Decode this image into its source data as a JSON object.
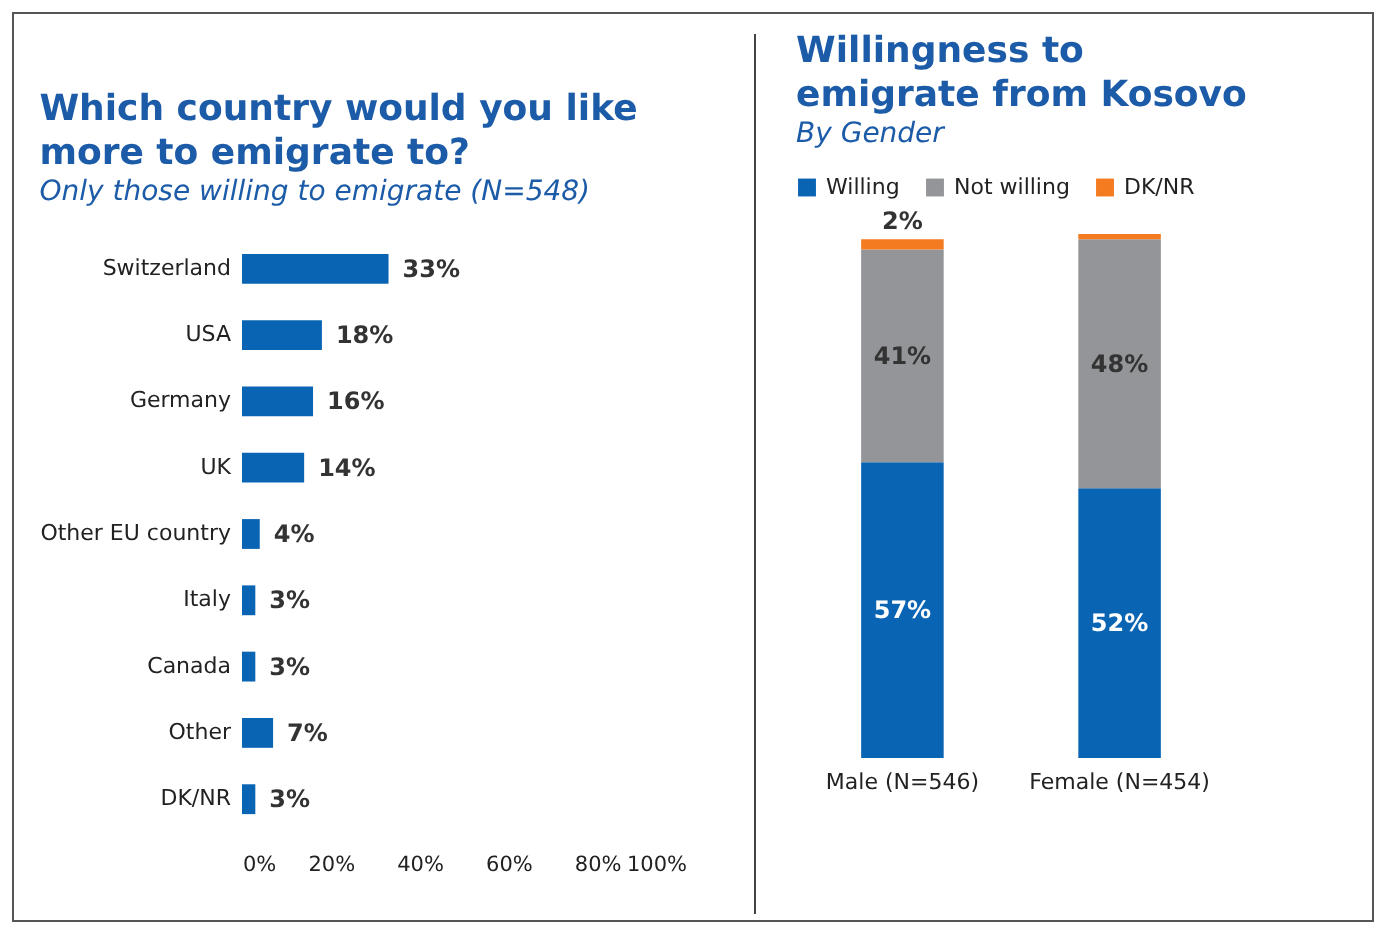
{
  "chart_data": [
    {
      "type": "bar",
      "orientation": "horizontal",
      "title": "Which country would you like more to emigrate to?",
      "subtitle": "Only those willing to emigrate (N=548)",
      "categories": [
        "Switzerland",
        "USA",
        "Germany",
        "UK",
        "Other EU country",
        "Italy",
        "Canada",
        "Other",
        "DK/NR"
      ],
      "values": [
        33,
        18,
        16,
        14,
        4,
        3,
        3,
        7,
        3
      ],
      "color": "#0a64b4",
      "value_labels": [
        "33%",
        "18%",
        "16%",
        "14%",
        "4%",
        "3%",
        "3%",
        "7%",
        "3%"
      ],
      "xlim": [
        0,
        100
      ],
      "xticks": [
        {
          "value": 0,
          "label": "0%"
        },
        {
          "value": 20,
          "label": "20%"
        },
        {
          "value": 40,
          "label": "40%"
        },
        {
          "value": 60,
          "label": "60%"
        },
        {
          "value": 80,
          "label": "80%"
        },
        {
          "value": 100,
          "label": "100%"
        }
      ],
      "grid": false
    },
    {
      "type": "bar",
      "stacked": true,
      "title": "Willingness to emigrate from Kosovo",
      "subtitle": "By Gender",
      "categories": [
        "Male (N=546)",
        "Female (N=454)"
      ],
      "series": [
        {
          "name": "Willing",
          "color": "#0a64b4",
          "values": [
            57,
            52
          ],
          "value_labels": [
            "57%",
            "52%"
          ]
        },
        {
          "name": "Not willing",
          "color": "#939598",
          "values": [
            41,
            48
          ],
          "value_labels": [
            "41%",
            "48%"
          ]
        },
        {
          "name": "DK/NR",
          "color": "#f47b20",
          "values": [
            2,
            1
          ],
          "value_labels": [
            "2%",
            null
          ]
        }
      ],
      "grid": false,
      "legend": "top"
    }
  ]
}
